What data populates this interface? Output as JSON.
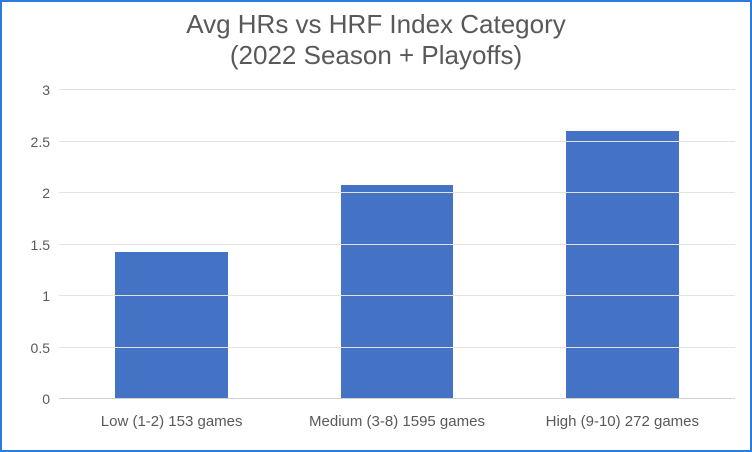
{
  "frame": {
    "background_color": "#ffffff",
    "border_color": "#2b7cde"
  },
  "chart_data": {
    "type": "bar",
    "title": "Avg HRs vs HRF Index Category",
    "subtitle": "(2022 Season + Playoffs)",
    "categories": [
      "Low (1-2) 153 games",
      "Medium (3-8) 1595 games",
      "High (9-10) 272 games"
    ],
    "values": [
      1.43,
      2.08,
      2.6
    ],
    "xlabel": "",
    "ylabel": "",
    "ylim": [
      0,
      3
    ],
    "yticks": [
      0,
      0.5,
      1,
      1.5,
      2,
      2.5,
      3
    ],
    "grid": true,
    "legend": false,
    "bar_color": "#4472C4",
    "gridline_color": "#e3e3e3",
    "axis_line_color": "#d2d2d2",
    "text_color": "#595959"
  }
}
